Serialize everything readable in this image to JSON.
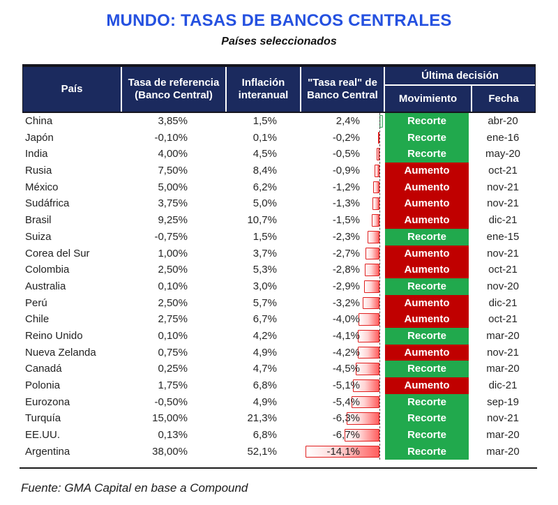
{
  "title": "MUNDO: TASAS DE BANCOS CENTRALES",
  "subtitle": "Países seleccionados",
  "source": "Fuente: GMA Capital en base a Compound",
  "header": {
    "country": "País",
    "reference_line1": "Tasa de referencia",
    "reference_line2": "(Banco Central)",
    "inflation_line1": "Inflación",
    "inflation_line2": "interanual",
    "real_line1": "\"Tasa real\" de",
    "real_line2": "Banco Central",
    "last_decision": "Última decisión",
    "movement": "Movimiento",
    "date": "Fecha"
  },
  "colors": {
    "title_blue": "#2551e0",
    "header_navy": "#1b2a5e",
    "cut_green": "#21a94d",
    "hike_red": "#c00000"
  },
  "chart_data": {
    "type": "table",
    "title": "MUNDO: TASAS DE BANCOS CENTRALES",
    "subtitle": "Países seleccionados",
    "columns": [
      "País",
      "Tasa de referencia (Banco Central)",
      "Inflación interanual",
      "\"Tasa real\" de Banco Central",
      "Última decisión - Movimiento",
      "Última decisión - Fecha"
    ],
    "bar_column_note": "real rate shown with conditional data bars; positive green right of dashed axis, negative red left of axis",
    "rows": [
      {
        "country": "China",
        "reference_rate": "3,85%",
        "inflation": "1,5%",
        "real_rate": "2,4%",
        "real_rate_value": 2.4,
        "movement": "Recorte",
        "movement_type": "cut",
        "date": "abr-20"
      },
      {
        "country": "Japón",
        "reference_rate": "-0,10%",
        "inflation": "0,1%",
        "real_rate": "-0,2%",
        "real_rate_value": -0.2,
        "movement": "Recorte",
        "movement_type": "cut",
        "date": "ene-16"
      },
      {
        "country": "India",
        "reference_rate": "4,00%",
        "inflation": "4,5%",
        "real_rate": "-0,5%",
        "real_rate_value": -0.5,
        "movement": "Recorte",
        "movement_type": "cut",
        "date": "may-20"
      },
      {
        "country": "Rusia",
        "reference_rate": "7,50%",
        "inflation": "8,4%",
        "real_rate": "-0,9%",
        "real_rate_value": -0.9,
        "movement": "Aumento",
        "movement_type": "hike",
        "date": "oct-21"
      },
      {
        "country": "México",
        "reference_rate": "5,00%",
        "inflation": "6,2%",
        "real_rate": "-1,2%",
        "real_rate_value": -1.2,
        "movement": "Aumento",
        "movement_type": "hike",
        "date": "nov-21"
      },
      {
        "country": "Sudáfrica",
        "reference_rate": "3,75%",
        "inflation": "5,0%",
        "real_rate": "-1,3%",
        "real_rate_value": -1.3,
        "movement": "Aumento",
        "movement_type": "hike",
        "date": "nov-21"
      },
      {
        "country": "Brasil",
        "reference_rate": "9,25%",
        "inflation": "10,7%",
        "real_rate": "-1,5%",
        "real_rate_value": -1.5,
        "movement": "Aumento",
        "movement_type": "hike",
        "date": "dic-21"
      },
      {
        "country": "Suiza",
        "reference_rate": "-0,75%",
        "inflation": "1,5%",
        "real_rate": "-2,3%",
        "real_rate_value": -2.3,
        "movement": "Recorte",
        "movement_type": "cut",
        "date": "ene-15"
      },
      {
        "country": "Corea del Sur",
        "reference_rate": "1,00%",
        "inflation": "3,7%",
        "real_rate": "-2,7%",
        "real_rate_value": -2.7,
        "movement": "Aumento",
        "movement_type": "hike",
        "date": "nov-21"
      },
      {
        "country": "Colombia",
        "reference_rate": "2,50%",
        "inflation": "5,3%",
        "real_rate": "-2,8%",
        "real_rate_value": -2.8,
        "movement": "Aumento",
        "movement_type": "hike",
        "date": "oct-21"
      },
      {
        "country": "Australia",
        "reference_rate": "0,10%",
        "inflation": "3,0%",
        "real_rate": "-2,9%",
        "real_rate_value": -2.9,
        "movement": "Recorte",
        "movement_type": "cut",
        "date": "nov-20"
      },
      {
        "country": "Perú",
        "reference_rate": "2,50%",
        "inflation": "5,7%",
        "real_rate": "-3,2%",
        "real_rate_value": -3.2,
        "movement": "Aumento",
        "movement_type": "hike",
        "date": "dic-21"
      },
      {
        "country": "Chile",
        "reference_rate": "2,75%",
        "inflation": "6,7%",
        "real_rate": "-4,0%",
        "real_rate_value": -4.0,
        "movement": "Aumento",
        "movement_type": "hike",
        "date": "oct-21"
      },
      {
        "country": "Reino Unido",
        "reference_rate": "0,10%",
        "inflation": "4,2%",
        "real_rate": "-4,1%",
        "real_rate_value": -4.1,
        "movement": "Recorte",
        "movement_type": "cut",
        "date": "mar-20"
      },
      {
        "country": "Nueva Zelanda",
        "reference_rate": "0,75%",
        "inflation": "4,9%",
        "real_rate": "-4,2%",
        "real_rate_value": -4.2,
        "movement": "Aumento",
        "movement_type": "hike",
        "date": "nov-21"
      },
      {
        "country": "Canadá",
        "reference_rate": "0,25%",
        "inflation": "4,7%",
        "real_rate": "-4,5%",
        "real_rate_value": -4.5,
        "movement": "Recorte",
        "movement_type": "cut",
        "date": "mar-20"
      },
      {
        "country": "Polonia",
        "reference_rate": "1,75%",
        "inflation": "6,8%",
        "real_rate": "-5,1%",
        "real_rate_value": -5.1,
        "movement": "Aumento",
        "movement_type": "hike",
        "date": "dic-21"
      },
      {
        "country": "Eurozona",
        "reference_rate": "-0,50%",
        "inflation": "4,9%",
        "real_rate": "-5,4%",
        "real_rate_value": -5.4,
        "movement": "Recorte",
        "movement_type": "cut",
        "date": "sep-19"
      },
      {
        "country": "Turquía",
        "reference_rate": "15,00%",
        "inflation": "21,3%",
        "real_rate": "-6,3%",
        "real_rate_value": -6.3,
        "movement": "Recorte",
        "movement_type": "cut",
        "date": "nov-21"
      },
      {
        "country": "EE.UU.",
        "reference_rate": "0,13%",
        "inflation": "6,8%",
        "real_rate": "-6,7%",
        "real_rate_value": -6.7,
        "movement": "Recorte",
        "movement_type": "cut",
        "date": "mar-20"
      },
      {
        "country": "Argentina",
        "reference_rate": "38,00%",
        "inflation": "52,1%",
        "real_rate": "-14,1%",
        "real_rate_value": -14.1,
        "movement": "Recorte",
        "movement_type": "cut",
        "date": "mar-20"
      }
    ]
  }
}
